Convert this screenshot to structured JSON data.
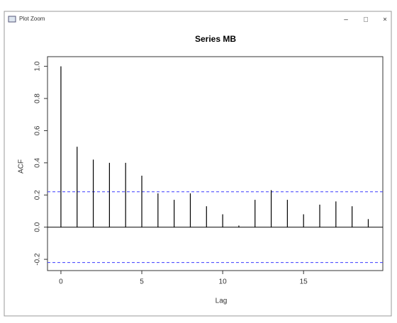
{
  "window": {
    "title": "Plot Zoom",
    "controls": [
      "–",
      "□",
      "×"
    ]
  },
  "chart_data": {
    "type": "acf",
    "title": "Series MB",
    "x_label": "Lag",
    "y_label": "ACF",
    "x": [
      0,
      1,
      2,
      3,
      4,
      5,
      6,
      7,
      8,
      9,
      10,
      11,
      12,
      13,
      14,
      15,
      16,
      17,
      18,
      19
    ],
    "values": [
      1.0,
      0.5,
      0.42,
      0.4,
      0.4,
      0.32,
      0.21,
      0.17,
      0.21,
      0.13,
      0.08,
      0.01,
      0.17,
      0.23,
      0.17,
      0.08,
      0.14,
      0.16,
      0.13,
      0.05
    ],
    "color": "#000000",
    "ci_lines": [
      0.22,
      -0.22
    ],
    "ci_color": "#3b3bff",
    "xlim": [
      -0.83,
      19.9
    ],
    "xticks": [
      0,
      5,
      10,
      15
    ],
    "ylim": [
      -0.27,
      1.06
    ],
    "yticks": [
      -0.2,
      {
        "value": 0,
        "label": "0.0"
      },
      0.2,
      0.4,
      0.6,
      0.8,
      {
        "value": 1,
        "label": "1.0"
      }
    ]
  }
}
